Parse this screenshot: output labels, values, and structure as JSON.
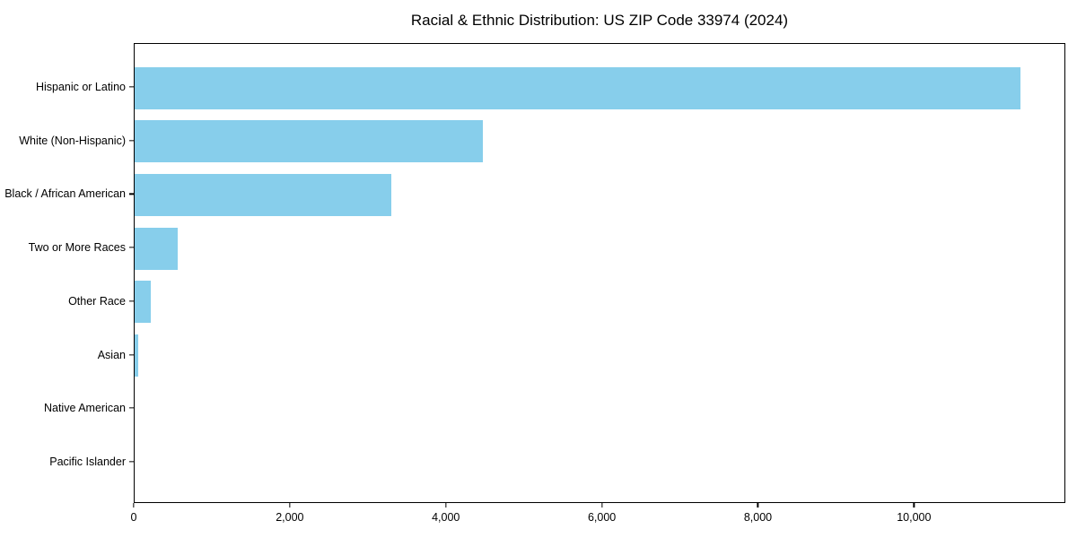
{
  "figure": {
    "background_color": "#ffffff",
    "axis_color": "#000000",
    "text_color": "#000000"
  },
  "chart_data": {
    "type": "bar",
    "orientation": "horizontal",
    "title": "Racial & Ethnic Distribution: US ZIP Code 33974 (2024)",
    "xlabel": "",
    "ylabel": "",
    "categories": [
      "Hispanic or Latino",
      "White (Non-Hispanic)",
      "Black / African American",
      "Two or More Races",
      "Other Race",
      "Asian",
      "Native American",
      "Pacific Islander"
    ],
    "values": [
      11350,
      4460,
      3290,
      555,
      205,
      50,
      0,
      0
    ],
    "bar_color": "#87CEEB",
    "xlim": [
      0,
      11940
    ],
    "x_ticks": [
      0,
      2000,
      4000,
      6000,
      8000,
      10000
    ],
    "x_tick_labels": [
      "0",
      "2,000",
      "4,000",
      "6,000",
      "8,000",
      "10,000"
    ],
    "grid": false,
    "legend": null
  }
}
